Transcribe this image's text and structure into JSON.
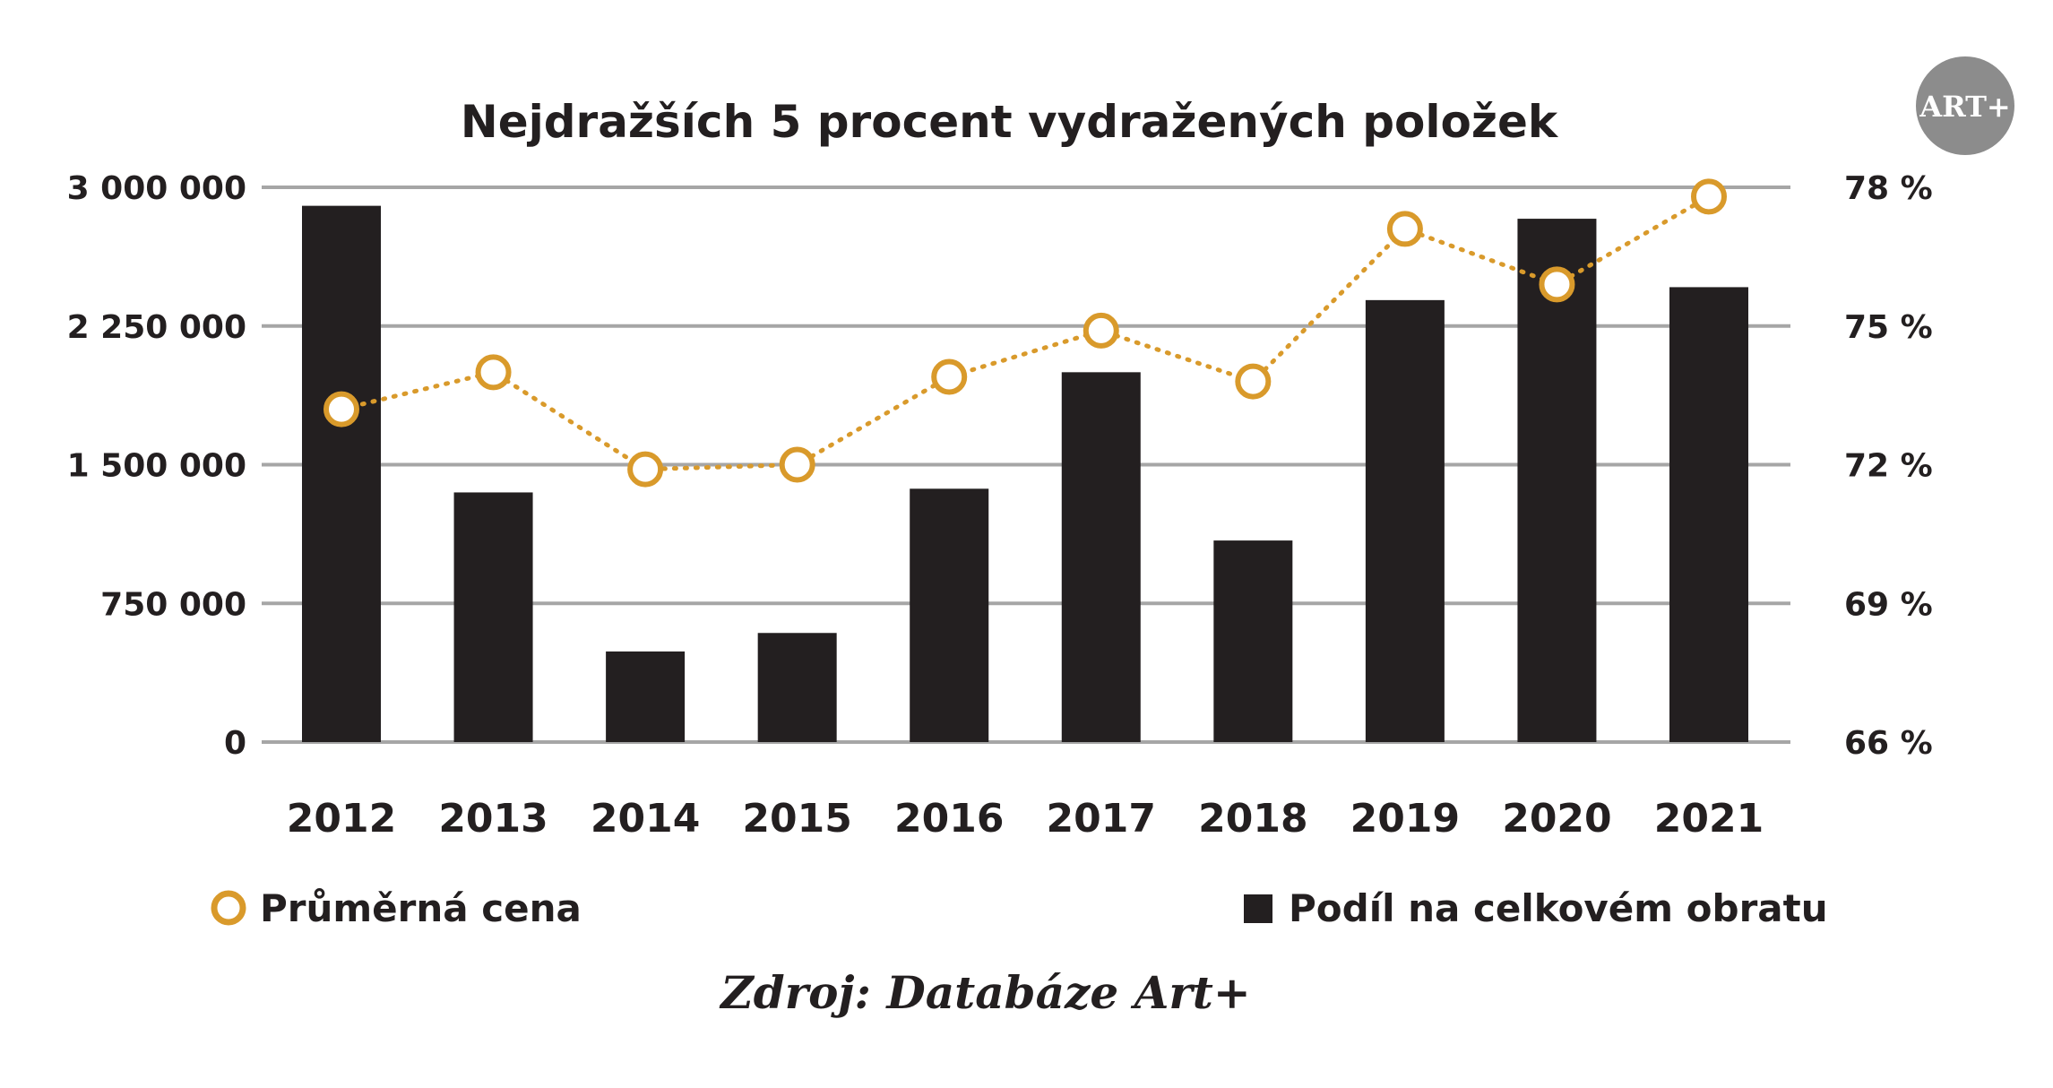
{
  "logo": {
    "text": "ART+",
    "color": "#8c8c8c"
  },
  "source": "Zdroj: Databáze Art+",
  "colors": {
    "bar": "#231f20",
    "line": "#d99a2b",
    "grid": "#a6a6a6",
    "text": "#231f20"
  },
  "chart_data": {
    "type": "bar",
    "title": "Nejdražších 5 procent vydražených položek",
    "categories": [
      "2012",
      "2013",
      "2014",
      "2015",
      "2016",
      "2017",
      "2018",
      "2019",
      "2020",
      "2021"
    ],
    "left_axis": {
      "ylim": [
        0,
        3000000
      ],
      "ticks": [
        0,
        750000,
        1500000,
        2250000,
        3000000
      ],
      "tick_labels": [
        "0",
        "750 000",
        "1 500 000",
        "2 250 000",
        "3 000 000"
      ]
    },
    "right_axis": {
      "ylim": [
        66,
        78
      ],
      "ticks": [
        66,
        69,
        72,
        75,
        78
      ],
      "tick_labels": [
        "66 %",
        "69 %",
        "72 %",
        "75 %",
        "78 %"
      ]
    },
    "series": [
      {
        "name": "Podíl na celkovém obratu",
        "type": "bar",
        "axis": "left",
        "values": [
          2900000,
          1350000,
          490000,
          590000,
          1370000,
          2000000,
          1090000,
          2390000,
          2830000,
          2460000
        ]
      },
      {
        "name": "Průměrná cena",
        "type": "line",
        "axis": "right",
        "values": [
          73.2,
          74.0,
          71.9,
          72.0,
          73.9,
          74.9,
          73.8,
          77.1,
          75.9,
          77.8
        ]
      }
    ],
    "legend": [
      "Průměrná cena",
      "Podíl na celkovém obratu"
    ],
    "legend_position": "bottom",
    "grid": true
  }
}
